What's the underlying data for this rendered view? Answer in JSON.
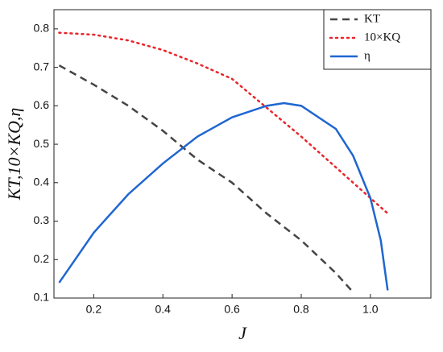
{
  "chart_data": {
    "type": "line",
    "xlabel": "J",
    "ylabel": "KT,10×KQ,η",
    "xlim": [
      0.085,
      1.175
    ],
    "ylim": [
      0.1,
      0.85
    ],
    "xticks": [
      0.2,
      0.4,
      0.6,
      0.8,
      {
        "value": 1,
        "label": "1.0"
      }
    ],
    "yticks": [
      0.1,
      0.2,
      0.3,
      0.4,
      0.5,
      0.6,
      0.7,
      0.8
    ],
    "legend": "upper right",
    "series": [
      {
        "name": "KT",
        "color": "#444444",
        "style": "dash",
        "x": [
          0.1,
          0.2,
          0.3,
          0.4,
          0.5,
          0.6,
          0.7,
          0.8,
          0.9,
          0.95
        ],
        "values": [
          0.705,
          0.655,
          0.6,
          0.535,
          0.46,
          0.4,
          0.32,
          0.25,
          0.165,
          0.115
        ]
      },
      {
        "name": "10×KQ",
        "color": "#e8252b",
        "style": "dot",
        "x": [
          0.1,
          0.2,
          0.3,
          0.4,
          0.5,
          0.6,
          0.7,
          0.8,
          0.9,
          1.0,
          1.05
        ],
        "values": [
          0.79,
          0.785,
          0.77,
          0.745,
          0.71,
          0.67,
          0.595,
          0.52,
          0.44,
          0.36,
          0.32
        ]
      },
      {
        "name": "η",
        "color": "#1f66d1",
        "style": "solid",
        "x": [
          0.1,
          0.2,
          0.3,
          0.4,
          0.5,
          0.6,
          0.7,
          0.75,
          0.8,
          0.9,
          0.95,
          1.0,
          1.03,
          1.05
        ],
        "values": [
          0.14,
          0.27,
          0.37,
          0.45,
          0.52,
          0.57,
          0.6,
          0.607,
          0.6,
          0.54,
          0.47,
          0.36,
          0.25,
          0.12
        ]
      }
    ]
  }
}
